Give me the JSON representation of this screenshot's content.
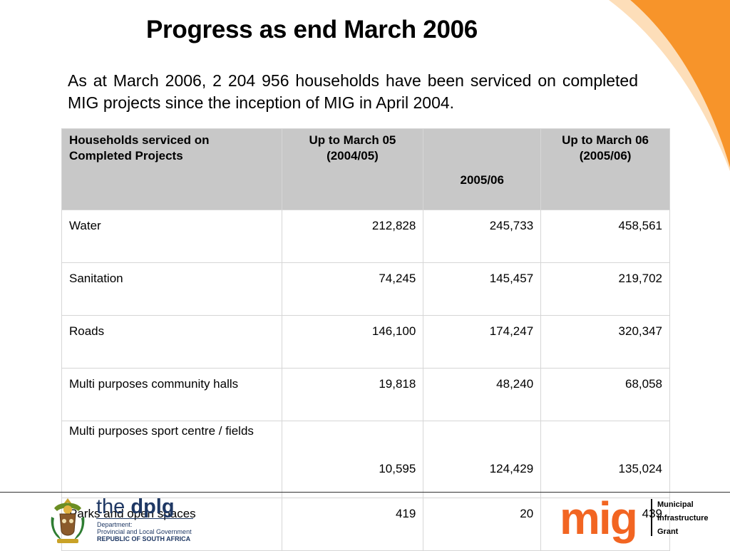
{
  "slide": {
    "title": "Progress as end March 2006",
    "intro": "As at March 2006, 2 204 956 households have been serviced on completed MIG projects since the inception of MIG in April 2004."
  },
  "table": {
    "headers": [
      "Households serviced on Completed Projects",
      "Up to March 05 (2004/05)",
      "2005/06",
      "Up to March 06 (2005/06)"
    ],
    "rows": [
      [
        "Water",
        "212,828",
        "245,733",
        "458,561"
      ],
      [
        "Sanitation",
        "74,245",
        "145,457",
        "219,702"
      ],
      [
        "Roads",
        "146,100",
        "174,247",
        "320,347"
      ],
      [
        "Multi purposes community halls",
        "19,818",
        "48,240",
        "68,058"
      ],
      [
        "Multi purposes sport centre / fields",
        "10,595",
        "124,429",
        "135,024"
      ],
      [
        "Parks and open spaces",
        "419",
        "20",
        "439"
      ]
    ]
  },
  "footer": {
    "dplg_the": "the ",
    "dplg_name": "dplg",
    "dplg_line1": "Department:",
    "dplg_line2": "Provincial and Local Government",
    "dplg_line3": "REPUBLIC OF SOUTH AFRICA",
    "mig_logo": "mig",
    "mig_line1": "Municipal",
    "mig_line2": "Infrastructure",
    "mig_line3": "Grant",
    "coat_icon": "coat-of-arms-icon"
  },
  "colors": {
    "accent_orange": "#f7942a",
    "mig_orange": "#f26522",
    "header_gray": "#c8c8c8",
    "dplg_blue": "#1f3864"
  }
}
